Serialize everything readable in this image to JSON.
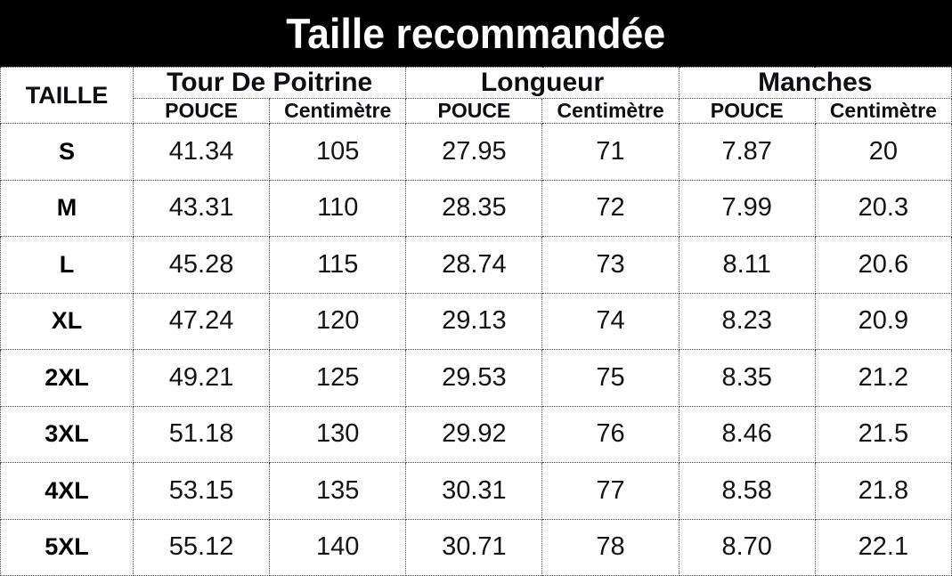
{
  "colors": {
    "title_bar_bg": "#000000",
    "title_text": "#ffffff",
    "table_text": "#111111",
    "border_dotted": "#4a4a4a",
    "table_bg": "#ffffff"
  },
  "chart_data": {
    "type": "table",
    "title": "Taille recommandée",
    "corner_header": "TAILLE",
    "column_groups": [
      {
        "label": "Tour De Poitrine",
        "subcolumns": [
          "POUCE",
          "Centimètre"
        ]
      },
      {
        "label": "Longueur",
        "subcolumns": [
          "POUCE",
          "Centimètre"
        ]
      },
      {
        "label": "Manches",
        "subcolumns": [
          "POUCE",
          "Centimètre"
        ]
      }
    ],
    "rows": [
      {
        "size": "S",
        "values": [
          "41.34",
          "105",
          "27.95",
          "71",
          "7.87",
          "20"
        ]
      },
      {
        "size": "M",
        "values": [
          "43.31",
          "110",
          "28.35",
          "72",
          "7.99",
          "20.3"
        ]
      },
      {
        "size": "L",
        "values": [
          "45.28",
          "115",
          "28.74",
          "73",
          "8.11",
          "20.6"
        ]
      },
      {
        "size": "XL",
        "values": [
          "47.24",
          "120",
          "29.13",
          "74",
          "8.23",
          "20.9"
        ]
      },
      {
        "size": "2XL",
        "values": [
          "49.21",
          "125",
          "29.53",
          "75",
          "8.35",
          "21.2"
        ]
      },
      {
        "size": "3XL",
        "values": [
          "51.18",
          "130",
          "29.92",
          "76",
          "8.46",
          "21.5"
        ]
      },
      {
        "size": "4XL",
        "values": [
          "53.15",
          "135",
          "30.31",
          "77",
          "8.58",
          "21.8"
        ]
      },
      {
        "size": "5XL",
        "values": [
          "55.12",
          "140",
          "30.71",
          "78",
          "8.70",
          "22.1"
        ]
      }
    ]
  }
}
